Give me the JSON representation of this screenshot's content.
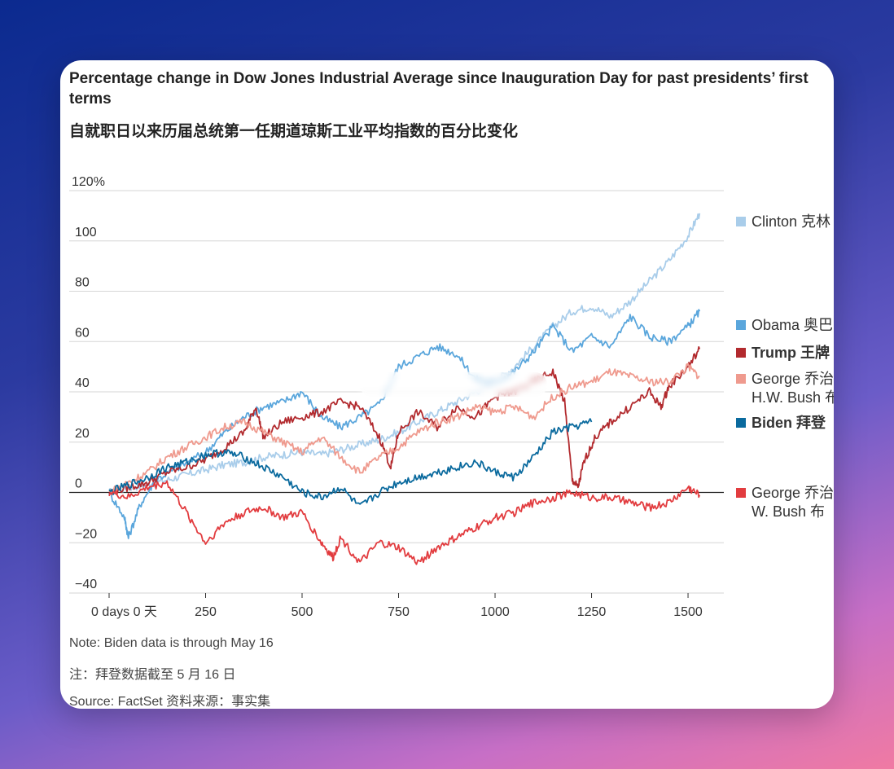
{
  "card": {
    "title": "Percentage change in Dow Jones Industrial Average since Inauguration Day for past presidents’ first terms",
    "subtitle": "自就职日以来历届总统第一任期道琼斯工业平均指数的百分比变化",
    "note_en": "Note: Biden data is through May 16",
    "note_zh": "注：拜登数据截至 5 月 16 日",
    "source": "Source: FactSet 资料来源：事实集"
  },
  "chart_data": {
    "type": "line",
    "y_ticks": [
      "120%",
      "100",
      "80",
      "60",
      "40",
      "20",
      "0",
      "−20",
      "−40"
    ],
    "y_tick_values": [
      120,
      100,
      80,
      60,
      40,
      20,
      0,
      -20,
      -40
    ],
    "x_ticks": [
      "0 days 0 天",
      "250",
      "500",
      "750",
      "1000",
      "1250",
      "1500"
    ],
    "x_tick_values": [
      0,
      250,
      500,
      750,
      1000,
      1250,
      1500
    ],
    "xlim": [
      0,
      1540
    ],
    "ylim": [
      -40,
      120
    ],
    "grid": true,
    "legend_placement": "right",
    "series": [
      {
        "name": "Clinton 克林",
        "color": "#a9cdea",
        "bold": false,
        "x": [
          0,
          50,
          100,
          150,
          200,
          250,
          300,
          350,
          400,
          450,
          500,
          550,
          600,
          650,
          700,
          750,
          800,
          850,
          900,
          950,
          1000,
          1050,
          1100,
          1150,
          1200,
          1250,
          1300,
          1350,
          1400,
          1450,
          1500,
          1530
        ],
        "y": [
          0,
          2,
          3,
          5,
          7,
          9,
          11,
          12,
          14,
          15,
          16,
          15,
          17,
          19,
          21,
          24,
          28,
          32,
          36,
          40,
          44,
          50,
          58,
          66,
          72,
          74,
          70,
          76,
          84,
          92,
          102,
          111
        ]
      },
      {
        "name": "Obama 奥巴",
        "color": "#5aa6dc",
        "bold": false,
        "x": [
          0,
          40,
          50,
          80,
          120,
          180,
          250,
          300,
          350,
          400,
          450,
          500,
          550,
          600,
          650,
          700,
          750,
          800,
          850,
          900,
          950,
          1000,
          1050,
          1100,
          1150,
          1200,
          1250,
          1300,
          1350,
          1400,
          1450,
          1500,
          1530
        ],
        "y": [
          0,
          -10,
          -18,
          -5,
          5,
          10,
          16,
          24,
          30,
          34,
          36,
          40,
          30,
          26,
          30,
          35,
          50,
          54,
          58,
          55,
          45,
          44,
          48,
          56,
          66,
          56,
          62,
          58,
          70,
          62,
          60,
          66,
          72
        ]
      },
      {
        "name": "Trump 王牌",
        "color": "#b22a2e",
        "bold": true,
        "x": [
          0,
          50,
          100,
          150,
          200,
          250,
          300,
          350,
          380,
          400,
          450,
          500,
          550,
          600,
          650,
          700,
          730,
          750,
          800,
          850,
          900,
          950,
          1000,
          1050,
          1100,
          1150,
          1180,
          1200,
          1215,
          1230,
          1260,
          1300,
          1350,
          1400,
          1430,
          1450,
          1500,
          1530
        ],
        "y": [
          0,
          2,
          4,
          8,
          10,
          13,
          18,
          24,
          34,
          22,
          28,
          30,
          32,
          36,
          34,
          22,
          10,
          24,
          32,
          26,
          34,
          30,
          38,
          40,
          44,
          48,
          36,
          5,
          2,
          12,
          22,
          28,
          34,
          40,
          34,
          42,
          50,
          57
        ]
      },
      {
        "name": "George 乔治 H.W. Bush 布",
        "color": "#ef9a8e",
        "bold": false,
        "x": [
          0,
          50,
          100,
          150,
          200,
          250,
          300,
          350,
          400,
          450,
          500,
          550,
          600,
          650,
          700,
          750,
          800,
          850,
          900,
          950,
          1000,
          1050,
          1100,
          1150,
          1200,
          1250,
          1300,
          1350,
          1400,
          1450,
          1500,
          1530
        ],
        "y": [
          0,
          4,
          8,
          14,
          18,
          22,
          26,
          28,
          24,
          20,
          16,
          22,
          14,
          8,
          14,
          18,
          24,
          28,
          30,
          34,
          32,
          34,
          30,
          38,
          42,
          44,
          48,
          46,
          44,
          44,
          50,
          46
        ]
      },
      {
        "name": "Biden 拜登",
        "color": "#0a6a9e",
        "bold": true,
        "x": [
          0,
          50,
          100,
          150,
          200,
          250,
          300,
          350,
          400,
          450,
          500,
          550,
          600,
          650,
          700,
          750,
          800,
          850,
          900,
          950,
          1000,
          1050,
          1100,
          1150,
          1200,
          1250
        ],
        "y": [
          0,
          3,
          6,
          10,
          12,
          15,
          16,
          14,
          10,
          6,
          0,
          -2,
          2,
          -6,
          0,
          4,
          6,
          8,
          10,
          12,
          8,
          6,
          14,
          24,
          26,
          28
        ]
      },
      {
        "name": "George 乔治 W. Bush 布",
        "color": "#e23c3f",
        "bold": false,
        "x": [
          0,
          50,
          100,
          150,
          200,
          250,
          300,
          350,
          400,
          450,
          500,
          550,
          580,
          600,
          650,
          700,
          750,
          800,
          850,
          900,
          950,
          1000,
          1050,
          1100,
          1150,
          1200,
          1250,
          1300,
          1350,
          1400,
          1450,
          1500,
          1530
        ],
        "y": [
          0,
          -2,
          2,
          4,
          -8,
          -20,
          -12,
          -8,
          -6,
          -10,
          -8,
          -20,
          -26,
          -18,
          -28,
          -20,
          -22,
          -28,
          -22,
          -18,
          -14,
          -10,
          -8,
          -4,
          -2,
          0,
          -2,
          -2,
          -4,
          -6,
          -4,
          2,
          -1
        ]
      }
    ]
  }
}
